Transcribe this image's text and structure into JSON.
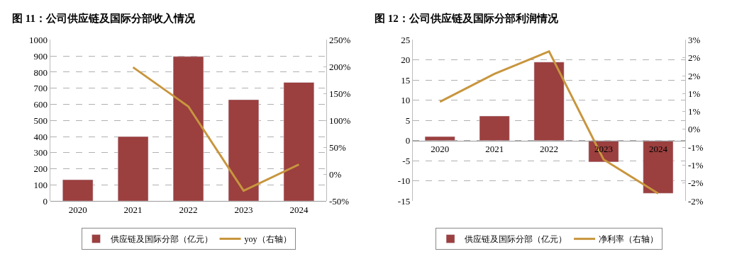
{
  "chart_data": [
    {
      "type": "bar",
      "title": "图 11：公司供应链及国际分部收入情况",
      "categories": [
        "2020",
        "2021",
        "2022",
        "2023",
        "2024"
      ],
      "series": [
        {
          "name": "供应链及国际分部（亿元）",
          "color": "#9b3f3f",
          "values": [
            132,
            400,
            897,
            629,
            736
          ]
        },
        {
          "name": "yoy（右轴）",
          "type": "line",
          "axis": "y2",
          "color": "#c8963e",
          "values": [
            null,
            199,
            126,
            -31,
            18
          ]
        }
      ],
      "ylim": [
        0,
        1000
      ],
      "yticks": [
        0,
        100,
        200,
        300,
        400,
        500,
        600,
        700,
        800,
        900,
        1000
      ],
      "y2lim": [
        -50,
        250
      ],
      "y2ticks": [
        {
          "value": -50,
          "label": "-50%"
        },
        {
          "value": 0,
          "label": "0%"
        },
        {
          "value": 50,
          "label": "50%"
        },
        {
          "value": 100,
          "label": "100%"
        },
        {
          "value": 150,
          "label": "150%"
        },
        {
          "value": 200,
          "label": "200%"
        },
        {
          "value": 250,
          "label": "250%"
        }
      ],
      "grid": "y",
      "legend": "bottom",
      "marker": "none",
      "line_style": "solid"
    },
    {
      "type": "bar",
      "title": "图 12：公司供应链及国际分部利润情况",
      "categories": [
        "2020",
        "2021",
        "2022",
        "2023",
        "2024"
      ],
      "series": [
        {
          "name": "供应链及国际分部（亿元）",
          "color": "#9b3f3f",
          "values": [
            1.0,
            6.1,
            19.5,
            -5.3,
            -13.1
          ]
        },
        {
          "name": "净利率（右轴）",
          "type": "line",
          "axis": "y2",
          "color": "#c8963e",
          "values": [
            0.77,
            1.55,
            2.18,
            -0.84,
            -1.79
          ]
        }
      ],
      "ylim": [
        -15,
        25
      ],
      "yticks": [
        -15,
        -10,
        -5,
        0,
        5,
        10,
        15,
        20,
        25
      ],
      "y2lim": [
        -2,
        2.5
      ],
      "y2ticks": [
        {
          "value": -2,
          "label": "-2%"
        },
        {
          "value": -1.5,
          "label": "-2%"
        },
        {
          "value": -1,
          "label": "-1%"
        },
        {
          "value": -0.5,
          "label": "-1%"
        },
        {
          "value": 0,
          "label": "0%"
        },
        {
          "value": 0.5,
          "label": "1%"
        },
        {
          "value": 1,
          "label": "1%"
        },
        {
          "value": 1.5,
          "label": "2%"
        },
        {
          "value": 2,
          "label": "2%"
        },
        {
          "value": 2.5,
          "label": "3%"
        }
      ],
      "grid": "y",
      "legend": "bottom",
      "marker": "none",
      "line_style": "solid"
    }
  ]
}
